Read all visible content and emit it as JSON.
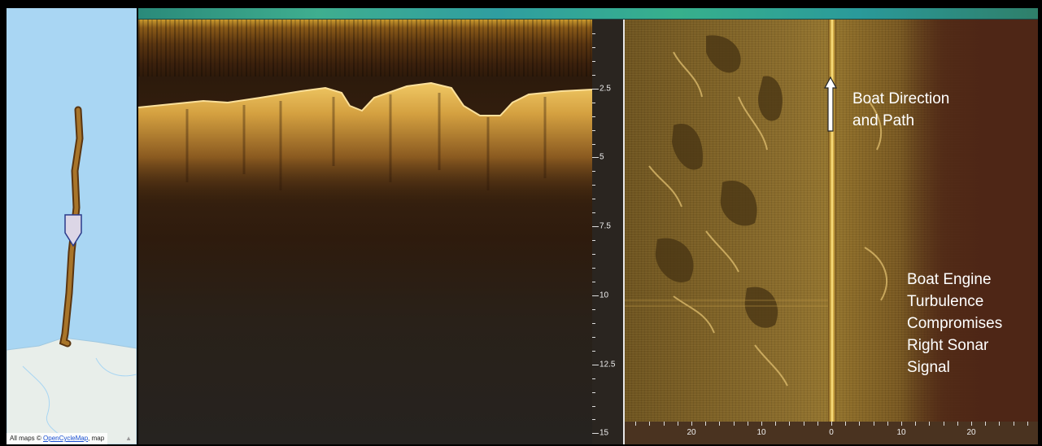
{
  "map": {
    "attribution_prefix": "All maps © ",
    "attribution_link": "OpenCycleMap",
    "attribution_suffix": ", map",
    "colors": {
      "water": "#a9d6f3",
      "land": "#e8eeea",
      "track": "#8a5a20"
    }
  },
  "down_scan": {
    "depth_labels": [
      "2.5",
      "5",
      "7.5",
      "10",
      "12.5",
      "15"
    ],
    "depth_values": [
      2.5,
      5,
      7.5,
      10,
      12.5,
      15
    ]
  },
  "side_scan": {
    "axis_labels": [
      "20",
      "10",
      "0",
      "10",
      "20"
    ]
  },
  "annotations": {
    "boat_direction": [
      "Boat Direction",
      "and Path"
    ],
    "engine_turbulence": [
      "Boat Engine",
      "Turbulence",
      "Compromises",
      "Right Sonar",
      "Signal"
    ]
  }
}
